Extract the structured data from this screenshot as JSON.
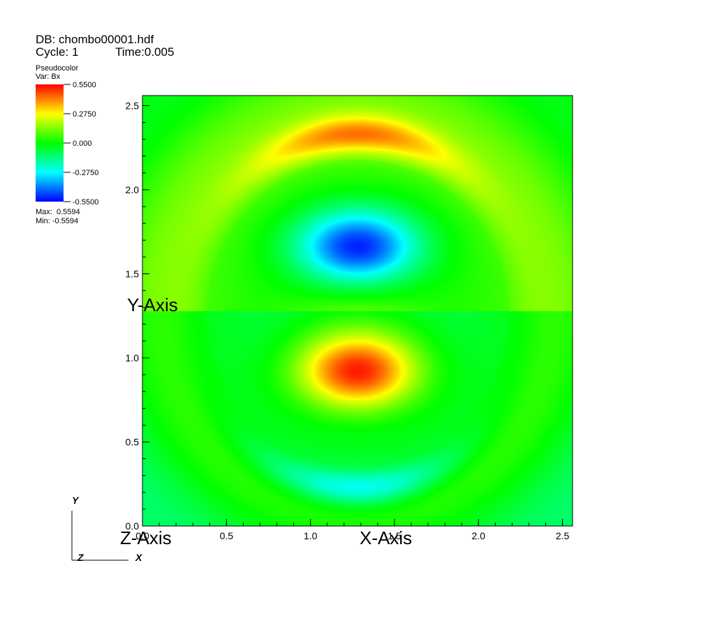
{
  "header": {
    "db": "DB: chombo00001.hdf",
    "cycle": "Cycle: 1",
    "time": "Time:0.005"
  },
  "legend": {
    "plot_type": "Pseudocolor",
    "variable": "Var: Bx",
    "ticks": [
      "0.5500",
      "0.2750",
      "0.000",
      "-0.2750",
      "-0.5500"
    ],
    "max_label": "Max:  0.5594",
    "min_label": "Min: -0.5594",
    "colors": [
      "#ff0000",
      "#ffff00",
      "#00ff00",
      "#00ffff",
      "#0000ff"
    ]
  },
  "chart_data": {
    "type": "heatmap",
    "variable": "Bx",
    "xlabel": "X-Axis",
    "ylabel": "Y-Axis",
    "zlabel": "Z-Axis",
    "xlim": [
      0.0,
      2.56
    ],
    "ylim": [
      0.0,
      2.56
    ],
    "x_ticks": [
      "0.0",
      "0.5",
      "1.0",
      "1.5",
      "2.0",
      "2.5"
    ],
    "y_ticks": [
      "0.0",
      "0.5",
      "1.0",
      "1.5",
      "2.0",
      "2.5"
    ],
    "color_range": [
      -0.55,
      0.55
    ],
    "data_max": 0.5594,
    "data_min": -0.5594,
    "features": [
      {
        "label": "negative lobe",
        "x": 1.28,
        "y": 1.66,
        "value": -0.5594
      },
      {
        "label": "positive lobe",
        "x": 1.28,
        "y": 0.92,
        "value": 0.5594
      },
      {
        "label": "upper positive arc",
        "x": 1.28,
        "y": 2.3,
        "value": 0.3
      },
      {
        "label": "lower negative arc",
        "x": 1.28,
        "y": 0.27,
        "value": -0.3
      }
    ]
  },
  "triad": {
    "y_label": "Y",
    "x_label": "X",
    "z_label": "Z"
  }
}
